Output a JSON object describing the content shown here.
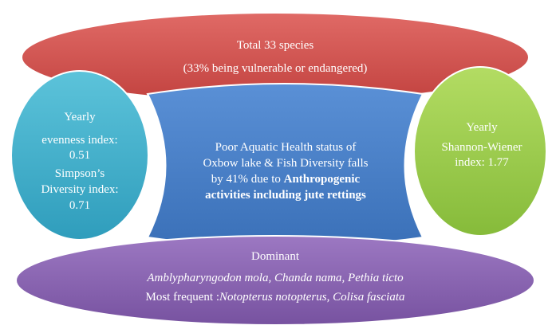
{
  "top": {
    "lines": [
      "Total 33 species",
      "(33% being vulnerable or endangered)"
    ]
  },
  "left": {
    "lines": [
      "Yearly",
      "evenness index:",
      "0.51",
      "Simpson’s",
      "Diversity index:",
      "0.71"
    ]
  },
  "center": {
    "line1": "Poor Aquatic Health status of",
    "line2": "Oxbow lake & Fish Diversity falls",
    "line3": "by 41% due to",
    "line3_bold": "Anthropogenic",
    "line4_bold": "activities including jute rettings"
  },
  "right": {
    "lines": [
      "Yearly",
      "Shannon-Wiener",
      "index: 1.77"
    ]
  },
  "bottom": {
    "title": "Dominant",
    "species": "Amblypharyngodon mola, Chanda nama, Pethia ticto",
    "frequent_label": "Most frequent :",
    "frequent_species": "Notopterus notopterus, Colisa fasciata"
  }
}
